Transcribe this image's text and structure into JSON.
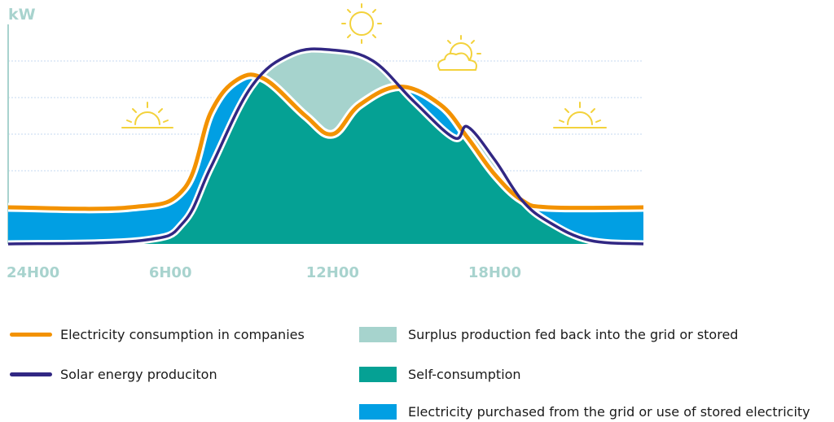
{
  "chart_data": {
    "type": "area",
    "ylabel": "kW",
    "x_ticks": [
      "24H00",
      "6H00",
      "12H00",
      "18H00"
    ],
    "x_tick_hours": [
      0,
      6,
      12,
      18
    ],
    "xlim": [
      0,
      23.5
    ],
    "ylim": [
      0,
      6
    ],
    "grid": true,
    "series": [
      {
        "name": "Electricity consumption in companies",
        "kind": "line",
        "color": "#f39200",
        "x": [
          0,
          4.5,
          6.5,
          7.5,
          8.5,
          9.5,
          11,
          12,
          13,
          14.5,
          16,
          17,
          18,
          19,
          20,
          23.5
        ],
        "y": [
          1.0,
          1.0,
          1.5,
          3.6,
          4.5,
          4.5,
          3.5,
          3.0,
          3.8,
          4.3,
          3.8,
          2.9,
          1.9,
          1.2,
          1.0,
          1.0
        ]
      },
      {
        "name": "Solar energy produciton",
        "kind": "line",
        "color": "#312783",
        "x": [
          0,
          5,
          6.5,
          7.5,
          9,
          10.5,
          12,
          13.5,
          15,
          16.5,
          17,
          18,
          19,
          20,
          21.5,
          23.5
        ],
        "y": [
          0.0,
          0.1,
          0.6,
          2.1,
          4.3,
          5.2,
          5.3,
          5.0,
          3.9,
          2.9,
          3.2,
          2.3,
          1.2,
          0.6,
          0.1,
          0.0
        ]
      },
      {
        "name": "Surplus production fed back into the grid or stored",
        "kind": "area",
        "color": "#a6d3cd"
      },
      {
        "name": "Self-consumption",
        "kind": "area",
        "color": "#05a194"
      },
      {
        "name": "Electricity purchased from the grid or use of stored electricity",
        "kind": "area",
        "color": "#019fe3"
      }
    ],
    "decorations": [
      {
        "icon": "sunrise-icon",
        "color": "#f3d23c"
      },
      {
        "icon": "sun-icon",
        "color": "#f3d23c"
      },
      {
        "icon": "sun-behind-cloud-icon",
        "color": "#f3d23c"
      },
      {
        "icon": "sunset-icon",
        "color": "#f3d23c"
      }
    ],
    "axis_color": "#a8d3ce",
    "grid_color": "#c5d8f0"
  },
  "legend": [
    {
      "label": "Electricity consumption in companies",
      "type": "line",
      "color": "#f39200"
    },
    {
      "label": "Solar energy produciton",
      "type": "line",
      "color": "#312783"
    },
    {
      "label": "Surplus production fed back into the grid or stored",
      "type": "box",
      "color": "#a6d3cd"
    },
    {
      "label": "Self-consumption",
      "type": "box",
      "color": "#05a194"
    },
    {
      "label": "Electricity purchased from the grid or use of stored electricity",
      "type": "box",
      "color": "#019fe3"
    }
  ]
}
